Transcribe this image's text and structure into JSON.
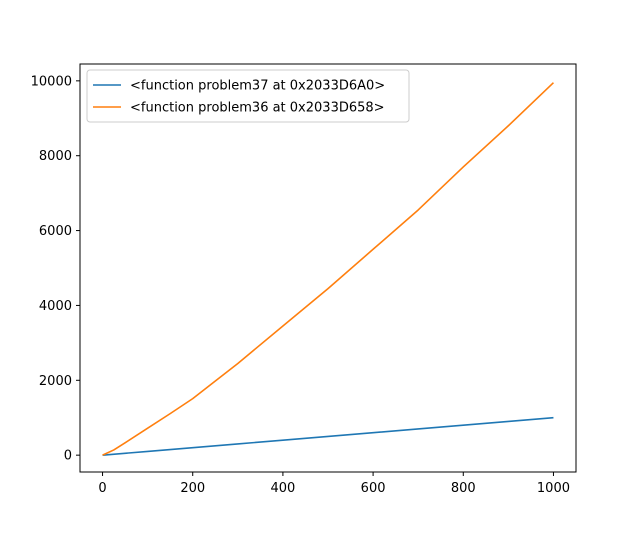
{
  "chart_data": {
    "type": "line",
    "title": "",
    "xlabel": "",
    "ylabel": "",
    "xlim": [
      -50,
      1050
    ],
    "ylim": [
      -450,
      10450
    ],
    "x_ticks": [
      0,
      200,
      400,
      600,
      800,
      1000
    ],
    "x_tick_labels": [
      "0",
      "200",
      "400",
      "600",
      "800",
      "1000"
    ],
    "y_ticks": [
      0,
      2000,
      4000,
      6000,
      8000,
      10000
    ],
    "y_tick_labels": [
      "0",
      "2000",
      "4000",
      "6000",
      "8000",
      "10000"
    ],
    "grid": false,
    "legend_position": "top-left",
    "series": [
      {
        "name": "<function problem37 at 0x2033D6A0>",
        "color": "#1f77b4",
        "x": [
          0,
          100,
          200,
          300,
          400,
          500,
          600,
          700,
          800,
          900,
          1000
        ],
        "y": [
          0,
          100,
          200,
          300,
          400,
          500,
          600,
          700,
          800,
          900,
          1000
        ]
      },
      {
        "name": "<function problem36 at 0x2033D658>",
        "color": "#ff7f0e",
        "x": [
          0,
          25,
          50,
          100,
          150,
          200,
          300,
          400,
          500,
          600,
          700,
          800,
          900,
          1000
        ],
        "y": [
          0,
          140,
          330,
          720,
          1110,
          1510,
          2450,
          3450,
          4450,
          5500,
          6550,
          7700,
          8800,
          9950
        ]
      }
    ]
  }
}
